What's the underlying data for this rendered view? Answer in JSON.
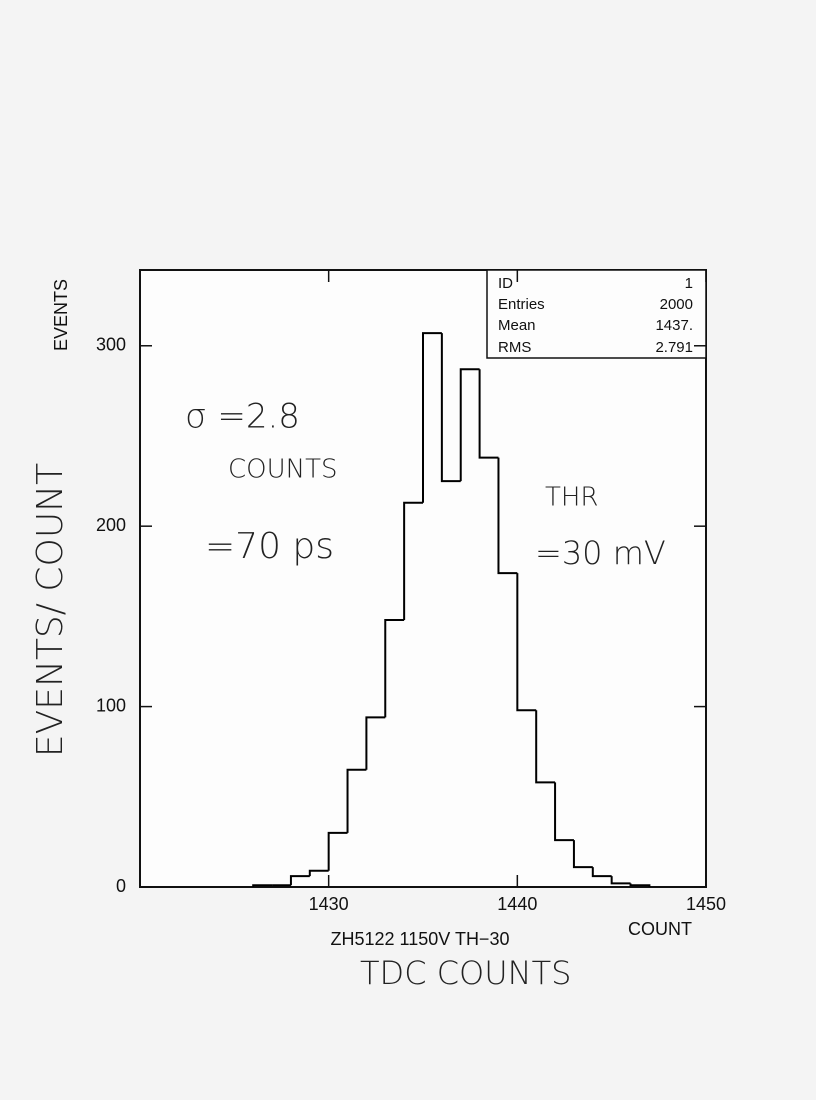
{
  "chart_data": {
    "type": "histogram",
    "title": "ZH5122 1150V TH−30",
    "x_label": "COUNT",
    "y_label": "EVENTS",
    "bins": [
      1426,
      1427,
      1428,
      1429,
      1430,
      1431,
      1432,
      1433,
      1434,
      1435,
      1436,
      1437,
      1438,
      1439,
      1440,
      1441,
      1442,
      1443,
      1444,
      1445,
      1446,
      1447
    ],
    "values": [
      1,
      1,
      6,
      9,
      30,
      65,
      94,
      148,
      213,
      307,
      225,
      287,
      238,
      174,
      98,
      58,
      26,
      11,
      6,
      2,
      1
    ],
    "color": "#000000",
    "xlim": [
      1420,
      1450
    ],
    "ylim": [
      0,
      342
    ],
    "xticks": [
      1430,
      1440,
      1450
    ],
    "yticks": [
      0,
      100,
      200,
      300
    ],
    "grid": false,
    "stats": [
      [
        "ID",
        "1"
      ],
      [
        "Entries",
        "2000"
      ],
      [
        "Mean",
        "1437."
      ],
      [
        "RMS",
        "2.791"
      ]
    ],
    "annotations": [
      "σ =2.8",
      "COUNTS",
      "=70 ps",
      "THR",
      "=30 mV",
      "EVENTS/ COUNT",
      "TDC COUNTS"
    ]
  }
}
